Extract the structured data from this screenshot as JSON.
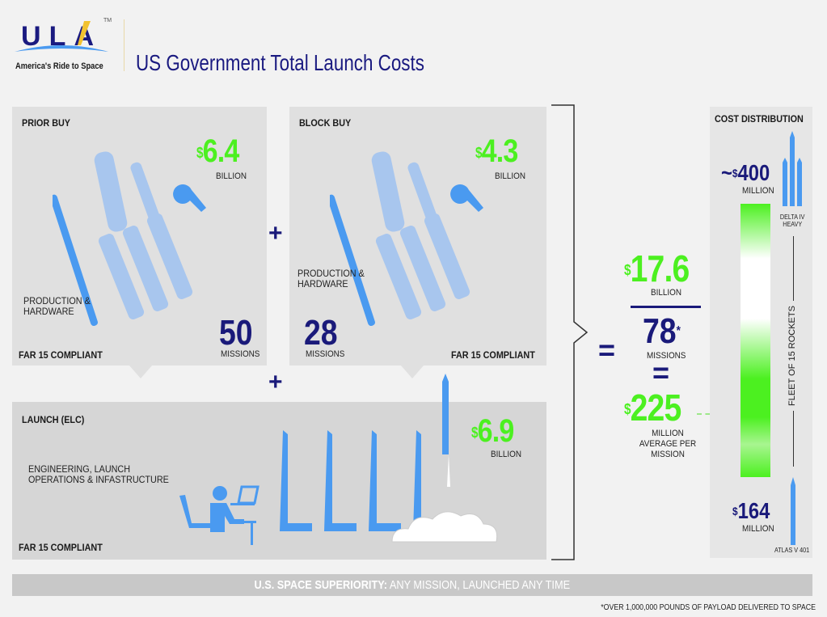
{
  "header": {
    "logo_text": "ULA",
    "logo_tm": "TM",
    "tagline": "America's Ride to Space",
    "title": "US Government Total Launch Costs"
  },
  "prior_buy": {
    "title": "PRIOR BUY",
    "amount": "6.4",
    "currency": "$",
    "unit": "BILLION",
    "description": "PRODUCTION & HARDWARE",
    "missions": "50",
    "missions_label": "MISSIONS",
    "compliance": "FAR 15 COMPLIANT"
  },
  "block_buy": {
    "title": "BLOCK BUY",
    "amount": "4.3",
    "currency": "$",
    "unit": "BILLION",
    "description": "PRODUCTION & HARDWARE",
    "missions": "28",
    "missions_label": "MISSIONS",
    "compliance": "FAR 15 COMPLIANT"
  },
  "launch": {
    "title": "LAUNCH (ELC)",
    "amount": "6.9",
    "currency": "$",
    "unit": "BILLION",
    "description": "ENGINEERING, LAUNCH OPERATIONS & INFASTRUCTURE",
    "compliance": "FAR 15 COMPLIANT"
  },
  "operators": {
    "plus": "+",
    "equals": "="
  },
  "total": {
    "currency": "$",
    "amount": "17.6",
    "unit": "BILLION",
    "missions": "78",
    "asterisk": "*",
    "missions_label": "MISSIONS",
    "average": "225",
    "average_unit": "MILLION AVERAGE PER MISSION"
  },
  "cost_distribution": {
    "title": "COST DISTRIBUTION",
    "high_prefix": "~",
    "currency": "$",
    "high": "400",
    "high_unit": "MILLION",
    "high_rocket": "DELTA IV HEAVY",
    "low": "164",
    "low_unit": "MILLION",
    "low_rocket": "ATLAS V 401",
    "fleet_label": "FLEET OF 15 ROCKETS"
  },
  "footer": {
    "bold": "U.S. SPACE SUPERIORITY:",
    "rest": " ANY MISSION, LAUNCHED ANY TIME",
    "footnote": "*OVER 1,000,000 POUNDS OF PAYLOAD DELIVERED TO SPACE"
  },
  "colors": {
    "green": "#4cf020",
    "navy": "#1a1a7a",
    "rocket_blue": "#4a9af0",
    "rocket_light": "#a8c6ee"
  }
}
